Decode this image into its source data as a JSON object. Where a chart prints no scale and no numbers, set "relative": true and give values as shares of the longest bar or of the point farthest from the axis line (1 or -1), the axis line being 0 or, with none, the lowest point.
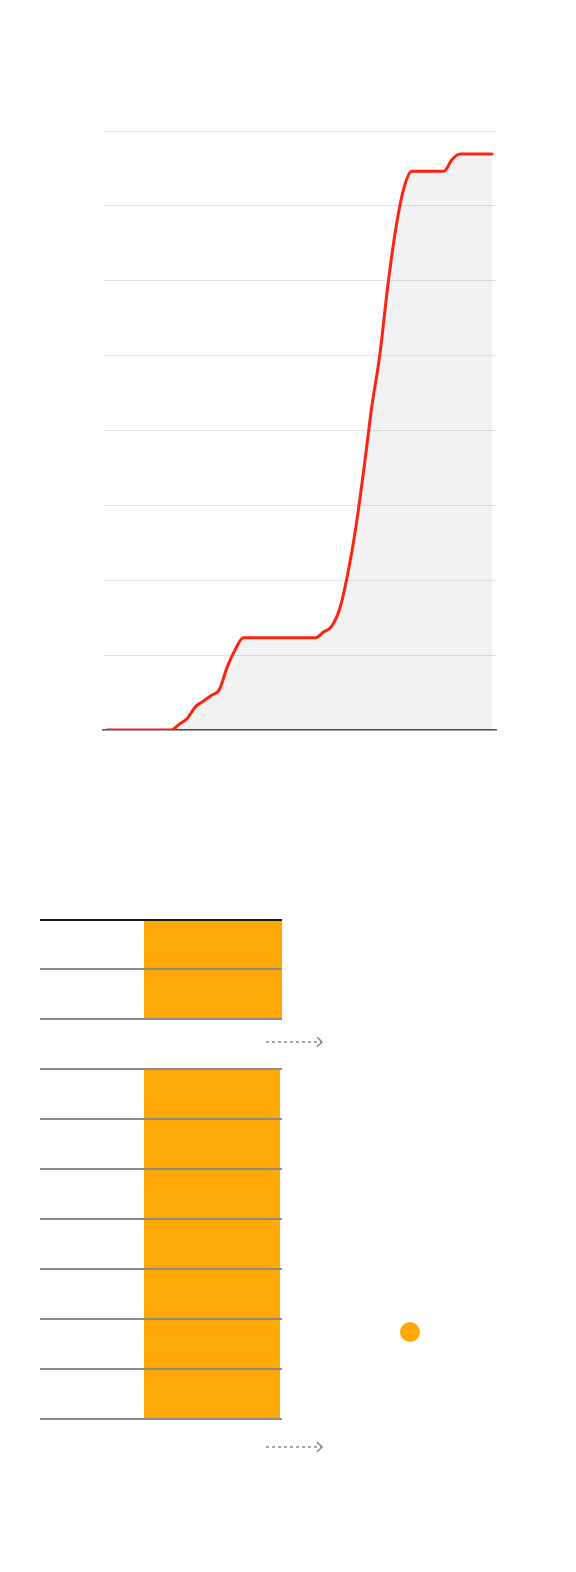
{
  "chart_data": {
    "type": "area",
    "relative": true,
    "grid": "y",
    "marker": "none",
    "categories": [
      null,
      null,
      null,
      null,
      null,
      null,
      null,
      null,
      null,
      null,
      null,
      null,
      null,
      null,
      null,
      null,
      null,
      null,
      null,
      null,
      null,
      null,
      null,
      null,
      null,
      null,
      null,
      null,
      null,
      null,
      null,
      null,
      null,
      null,
      null,
      null,
      null,
      null,
      null,
      null,
      null,
      null,
      null,
      null,
      null,
      null,
      null,
      null,
      null
    ],
    "color": "#f92512",
    "values": [
      0,
      0,
      0,
      0,
      0,
      0,
      0,
      0,
      0,
      0.01,
      0.02,
      0.04,
      0.05,
      0.06,
      0.07,
      0.11,
      0.14,
      0.16,
      0.16,
      0.16,
      0.16,
      0.16,
      0.16,
      0.16,
      0.16,
      0.16,
      0.16,
      0.17,
      0.18,
      0.21,
      0.27,
      0.35,
      0.45,
      0.56,
      0.65,
      0.77,
      0.87,
      0.94,
      0.97,
      0.97,
      0.97,
      0.97,
      0.97,
      0.99,
      1,
      1,
      1,
      1,
      1
    ]
  }
}
